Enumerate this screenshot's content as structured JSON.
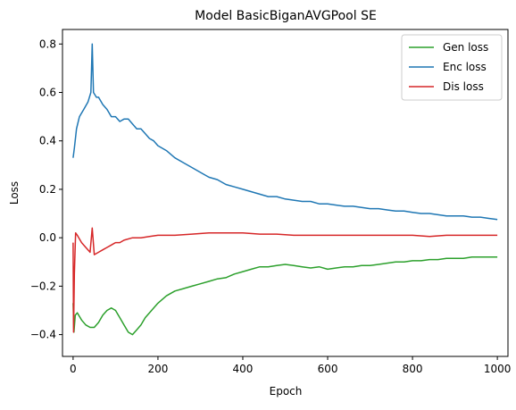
{
  "chart_data": {
    "type": "line",
    "title": "Model BasicBiganAVGPool SE",
    "xlabel": "Epoch",
    "ylabel": "Loss",
    "xlim": [
      -25,
      1025
    ],
    "ylim": [
      -0.49,
      0.86
    ],
    "xticks": [
      0,
      200,
      400,
      600,
      800,
      1000
    ],
    "xtick_labels": [
      "0",
      "200",
      "400",
      "600",
      "800",
      "1000"
    ],
    "yticks": [
      -0.4,
      -0.2,
      0.0,
      0.2,
      0.4,
      0.6,
      0.8
    ],
    "ytick_labels": [
      "−0.4",
      "−0.2",
      "0.0",
      "0.2",
      "0.4",
      "0.6",
      "0.8"
    ],
    "grid": false,
    "legend_position": "top-right",
    "series": [
      {
        "name": "Gen loss",
        "color": "#2ca02c",
        "x": [
          0,
          2,
          5,
          10,
          20,
          30,
          40,
          50,
          60,
          70,
          80,
          90,
          100,
          110,
          120,
          130,
          140,
          150,
          160,
          170,
          180,
          190,
          200,
          220,
          240,
          260,
          280,
          300,
          320,
          340,
          360,
          380,
          400,
          420,
          440,
          460,
          480,
          500,
          520,
          540,
          560,
          580,
          600,
          620,
          640,
          660,
          680,
          700,
          720,
          740,
          760,
          780,
          800,
          820,
          840,
          860,
          880,
          900,
          920,
          940,
          960,
          980,
          1000
        ],
        "values": [
          -0.27,
          -0.39,
          -0.32,
          -0.31,
          -0.34,
          -0.36,
          -0.37,
          -0.37,
          -0.35,
          -0.32,
          -0.3,
          -0.29,
          -0.3,
          -0.33,
          -0.36,
          -0.39,
          -0.4,
          -0.38,
          -0.36,
          -0.33,
          -0.31,
          -0.29,
          -0.27,
          -0.24,
          -0.22,
          -0.21,
          -0.2,
          -0.19,
          -0.18,
          -0.17,
          -0.165,
          -0.15,
          -0.14,
          -0.13,
          -0.12,
          -0.12,
          -0.115,
          -0.11,
          -0.115,
          -0.12,
          -0.125,
          -0.12,
          -0.13,
          -0.125,
          -0.12,
          -0.12,
          -0.115,
          -0.115,
          -0.11,
          -0.105,
          -0.1,
          -0.1,
          -0.095,
          -0.095,
          -0.09,
          -0.09,
          -0.085,
          -0.085,
          -0.085,
          -0.08,
          -0.08,
          -0.08,
          -0.08
        ]
      },
      {
        "name": "Enc loss",
        "color": "#1f77b4",
        "x": [
          0,
          3,
          8,
          15,
          25,
          35,
          42,
          45,
          48,
          55,
          60,
          70,
          80,
          90,
          100,
          110,
          120,
          130,
          140,
          150,
          160,
          170,
          180,
          190,
          200,
          220,
          240,
          260,
          280,
          300,
          320,
          340,
          360,
          380,
          400,
          420,
          440,
          460,
          480,
          500,
          520,
          540,
          560,
          580,
          600,
          620,
          640,
          660,
          680,
          700,
          720,
          740,
          760,
          780,
          800,
          820,
          840,
          860,
          880,
          900,
          920,
          940,
          960,
          980,
          1000
        ],
        "values": [
          0.33,
          0.37,
          0.45,
          0.5,
          0.53,
          0.56,
          0.6,
          0.8,
          0.6,
          0.58,
          0.58,
          0.55,
          0.53,
          0.5,
          0.5,
          0.48,
          0.49,
          0.49,
          0.47,
          0.45,
          0.45,
          0.43,
          0.41,
          0.4,
          0.38,
          0.36,
          0.33,
          0.31,
          0.29,
          0.27,
          0.25,
          0.24,
          0.22,
          0.21,
          0.2,
          0.19,
          0.18,
          0.17,
          0.17,
          0.16,
          0.155,
          0.15,
          0.15,
          0.14,
          0.14,
          0.135,
          0.13,
          0.13,
          0.125,
          0.12,
          0.12,
          0.115,
          0.11,
          0.11,
          0.105,
          0.1,
          0.1,
          0.095,
          0.09,
          0.09,
          0.09,
          0.085,
          0.085,
          0.08,
          0.075
        ]
      },
      {
        "name": "Dis loss",
        "color": "#d62728",
        "x": [
          0,
          1,
          3,
          6,
          10,
          20,
          30,
          40,
          45,
          50,
          60,
          70,
          80,
          90,
          100,
          110,
          120,
          140,
          160,
          180,
          200,
          240,
          280,
          320,
          360,
          400,
          440,
          480,
          520,
          560,
          600,
          640,
          680,
          720,
          760,
          800,
          840,
          880,
          920,
          960,
          1000
        ],
        "values": [
          -0.02,
          -0.39,
          -0.15,
          0.02,
          0.01,
          -0.02,
          -0.04,
          -0.06,
          0.04,
          -0.07,
          -0.06,
          -0.05,
          -0.04,
          -0.03,
          -0.02,
          -0.02,
          -0.01,
          0.0,
          0.0,
          0.005,
          0.01,
          0.01,
          0.015,
          0.02,
          0.02,
          0.02,
          0.015,
          0.015,
          0.01,
          0.01,
          0.01,
          0.01,
          0.01,
          0.01,
          0.01,
          0.01,
          0.005,
          0.01,
          0.01,
          0.01,
          0.01
        ]
      }
    ]
  }
}
